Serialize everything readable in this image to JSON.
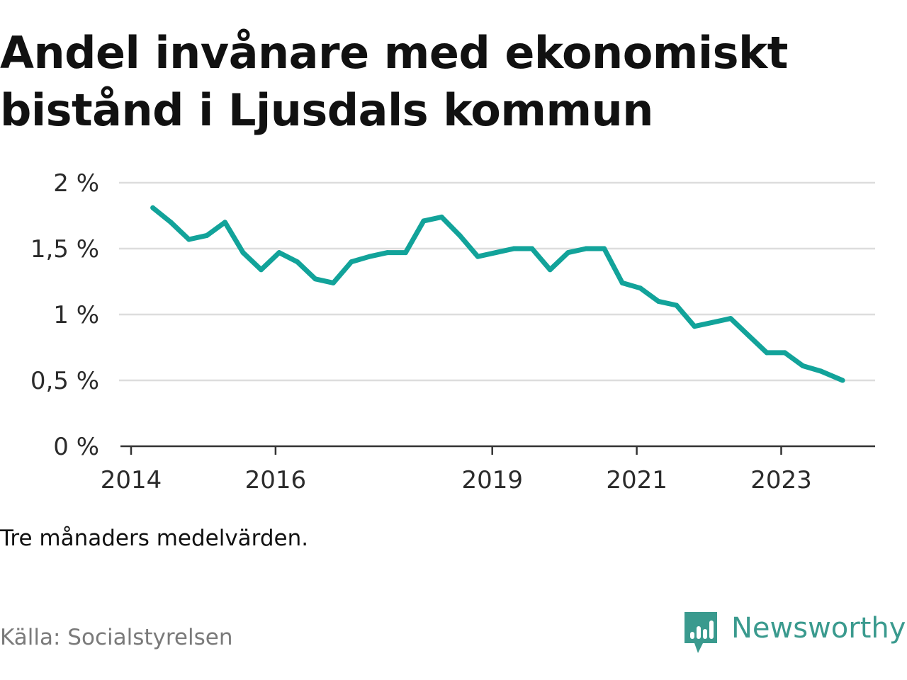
{
  "header": {
    "title": "Andel invånare med ekonomiskt bistånd i Ljusdals kommun"
  },
  "footer": {
    "note": "Tre månaders medelvärden.",
    "source": "Källa: Socialstyrelsen",
    "brand": "Newsworthy"
  },
  "colors": {
    "line": "#12a39a",
    "grid": "#dddddd",
    "axis": "#333333",
    "brand": "#3a9a8e"
  },
  "chart_data": {
    "type": "line",
    "title": "Andel invånare med ekonomiskt bistånd i Ljusdals kommun",
    "xlabel": "",
    "ylabel": "",
    "grid": true,
    "legend": "none",
    "xlim": [
      2014,
      2024.3
    ],
    "ylim": [
      0,
      2
    ],
    "y_ticks": [
      {
        "value": 0,
        "label": "0 %"
      },
      {
        "value": 0.5,
        "label": "0,5 %"
      },
      {
        "value": 1,
        "label": "1 %"
      },
      {
        "value": 1.5,
        "label": "1,5 %"
      },
      {
        "value": 2,
        "label": "2 %"
      }
    ],
    "x_ticks": [
      {
        "value": 2014,
        "label": "2014"
      },
      {
        "value": 2016,
        "label": "2016"
      },
      {
        "value": 2019,
        "label": "2019"
      },
      {
        "value": 2021,
        "label": "2021"
      },
      {
        "value": 2023,
        "label": "2023"
      }
    ],
    "series": [
      {
        "x": [
          2014.3,
          2014.55,
          2014.8,
          2015.05,
          2015.3,
          2015.55,
          2015.8,
          2016.05,
          2016.3,
          2016.55,
          2016.8,
          2017.05,
          2017.3,
          2017.55,
          2017.8,
          2018.05,
          2018.3,
          2018.55,
          2018.8,
          2019.05,
          2019.3,
          2019.55,
          2019.8,
          2020.05,
          2020.3,
          2020.55,
          2020.8,
          2021.05,
          2021.3,
          2021.55,
          2021.8,
          2022.05,
          2022.3,
          2022.55,
          2022.8,
          2023.05,
          2023.3,
          2023.55,
          2023.85
        ],
        "values": [
          1.81,
          1.7,
          1.57,
          1.6,
          1.7,
          1.47,
          1.34,
          1.47,
          1.4,
          1.27,
          1.24,
          1.4,
          1.44,
          1.47,
          1.47,
          1.71,
          1.74,
          1.6,
          1.44,
          1.47,
          1.5,
          1.5,
          1.34,
          1.47,
          1.5,
          1.5,
          1.24,
          1.2,
          1.1,
          1.07,
          0.91,
          0.94,
          0.97,
          0.84,
          0.71,
          0.71,
          0.61,
          0.57,
          0.5
        ]
      }
    ]
  }
}
